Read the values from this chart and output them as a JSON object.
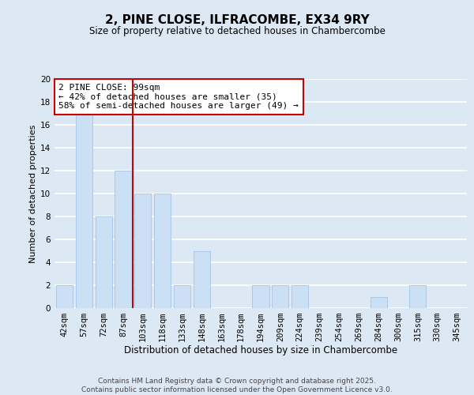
{
  "title": "2, PINE CLOSE, ILFRACOMBE, EX34 9RY",
  "subtitle": "Size of property relative to detached houses in Chambercombe",
  "xlabel": "Distribution of detached houses by size in Chambercombe",
  "ylabel": "Number of detached properties",
  "bins": [
    "42sqm",
    "57sqm",
    "72sqm",
    "87sqm",
    "103sqm",
    "118sqm",
    "133sqm",
    "148sqm",
    "163sqm",
    "178sqm",
    "194sqm",
    "209sqm",
    "224sqm",
    "239sqm",
    "254sqm",
    "269sqm",
    "284sqm",
    "300sqm",
    "315sqm",
    "330sqm",
    "345sqm"
  ],
  "counts": [
    2,
    17,
    8,
    12,
    10,
    10,
    2,
    5,
    0,
    0,
    2,
    2,
    2,
    0,
    0,
    0,
    1,
    0,
    2,
    0,
    0
  ],
  "bar_color": "#cce0f5",
  "bar_edge_color": "#aac8e8",
  "highlight_line_color": "#cc0000",
  "annotation_text": "2 PINE CLOSE: 99sqm\n← 42% of detached houses are smaller (35)\n58% of semi-detached houses are larger (49) →",
  "annotation_box_color": "white",
  "annotation_box_edge_color": "#cc0000",
  "ylim": [
    0,
    20
  ],
  "yticks": [
    0,
    2,
    4,
    6,
    8,
    10,
    12,
    14,
    16,
    18,
    20
  ],
  "background_color": "#dde8f5",
  "grid_color": "white",
  "footer": "Contains HM Land Registry data © Crown copyright and database right 2025.\nContains public sector information licensed under the Open Government Licence v3.0.",
  "title_fontsize": 11,
  "subtitle_fontsize": 8.5,
  "xlabel_fontsize": 8.5,
  "ylabel_fontsize": 8,
  "tick_fontsize": 7.5,
  "annotation_fontsize": 8,
  "footer_fontsize": 6.5
}
